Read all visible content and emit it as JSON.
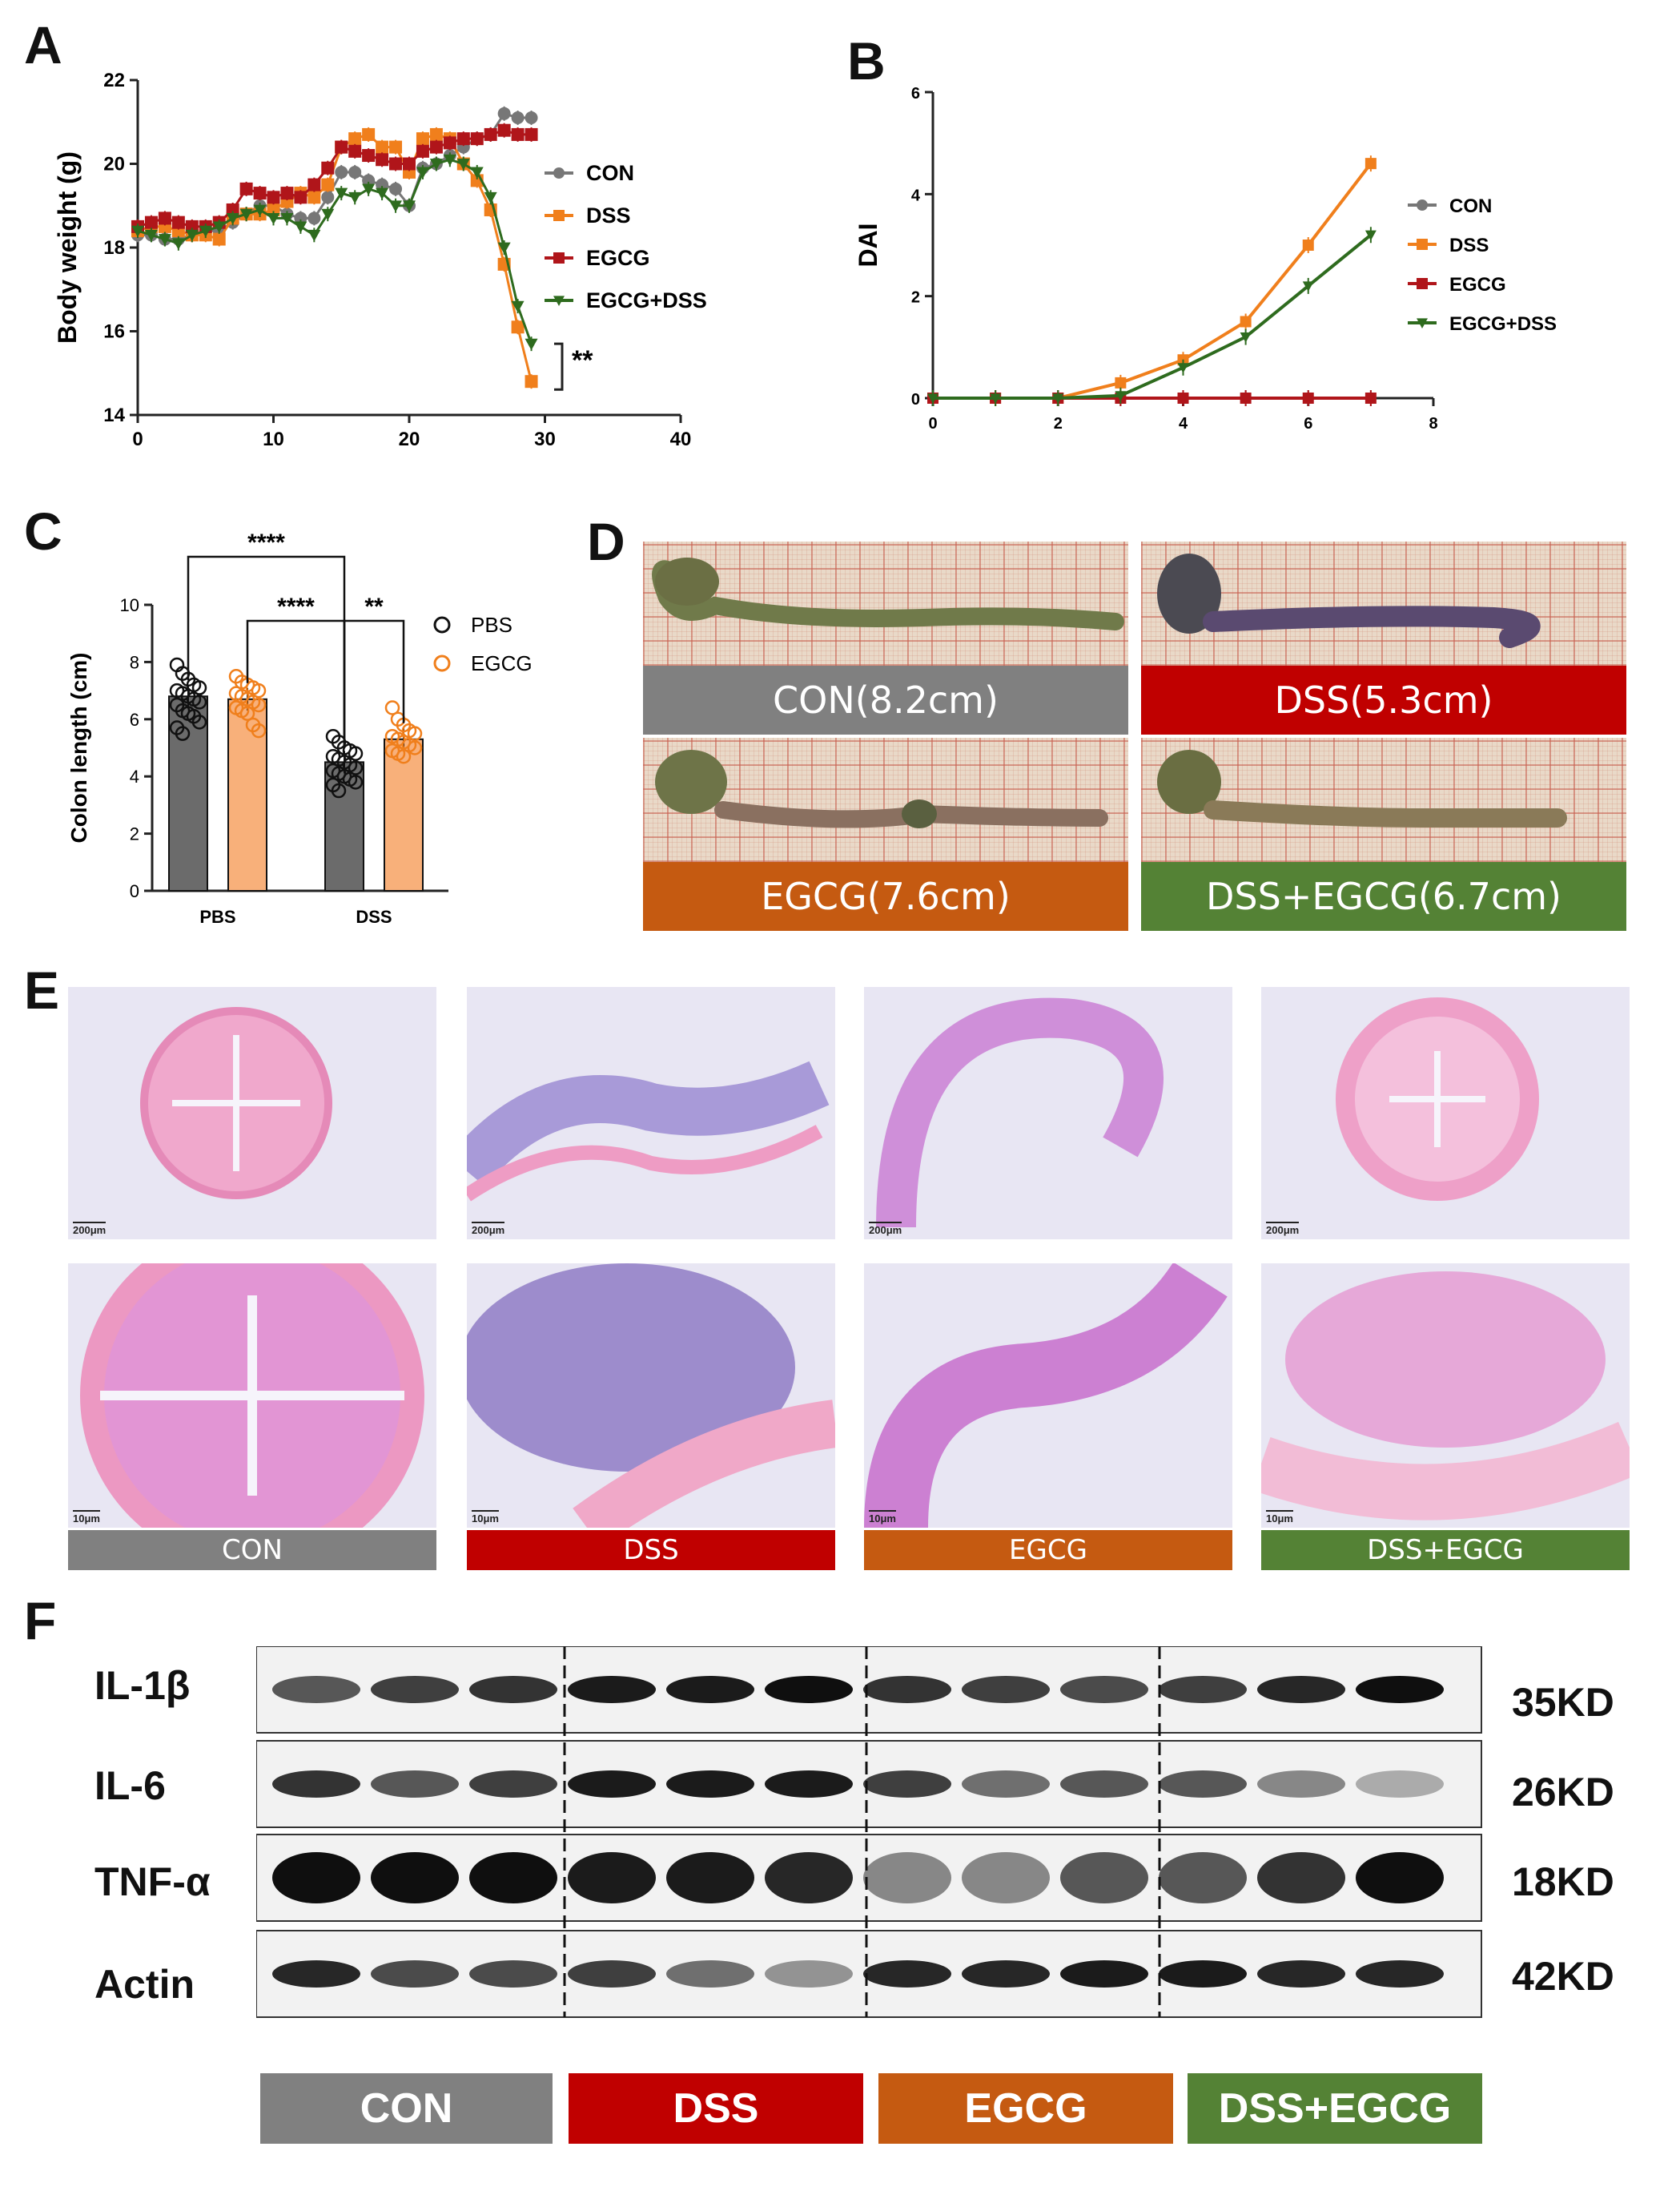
{
  "panel_letters": [
    "A",
    "B",
    "C",
    "D",
    "E",
    "F"
  ],
  "colors": {
    "con": "#777777",
    "dss": "#f07f1c",
    "egcg": "#b0151a",
    "egcg_dss": "#2e6b1e",
    "tag_con": "#808080",
    "tag_dss": "#c00000",
    "tag_egcg": "#c55a11",
    "tag_dss_egcg": "#548235",
    "pbs_bar": "#6b6b6b",
    "egcg_bar": "#f8b07a",
    "egcg_point": "#f07f1c"
  },
  "chart_data": [
    {
      "type": "line",
      "title": "",
      "xlabel": "",
      "ylabel": "Body weight (g)",
      "xlim": [
        0,
        40
      ],
      "ylim": [
        14,
        22
      ],
      "xticks": [
        "0",
        "10",
        "20",
        "30",
        "40"
      ],
      "yticks": [
        "14",
        "16",
        "18",
        "20",
        "22"
      ],
      "legend_position": "right",
      "significance": "**",
      "series": [
        {
          "name": "CON",
          "marker": "circle",
          "x": [
            0,
            1,
            2,
            3,
            4,
            5,
            6,
            7,
            8,
            9,
            10,
            11,
            12,
            13,
            14,
            15,
            16,
            17,
            18,
            19,
            20,
            21,
            22,
            23,
            24,
            25,
            26,
            27,
            28,
            29
          ],
          "y": [
            18.3,
            18.3,
            18.2,
            18.2,
            18.3,
            18.4,
            18.4,
            18.6,
            18.8,
            19.0,
            19.0,
            18.8,
            18.7,
            18.7,
            19.2,
            19.8,
            19.8,
            19.6,
            19.5,
            19.4,
            19.0,
            19.9,
            20.0,
            20.2,
            20.4,
            20.6,
            20.7,
            21.2,
            21.1,
            21.1
          ]
        },
        {
          "name": "DSS",
          "marker": "square",
          "x": [
            0,
            1,
            2,
            3,
            4,
            5,
            6,
            7,
            8,
            9,
            10,
            11,
            12,
            13,
            14,
            15,
            16,
            17,
            18,
            19,
            20,
            21,
            22,
            23,
            24,
            25,
            26,
            27,
            28,
            29
          ],
          "y": [
            18.4,
            18.5,
            18.5,
            18.4,
            18.3,
            18.3,
            18.2,
            18.7,
            18.8,
            18.8,
            18.9,
            19.1,
            19.3,
            19.2,
            19.5,
            20.4,
            20.6,
            20.7,
            20.4,
            20.4,
            19.8,
            20.6,
            20.7,
            20.6,
            20.0,
            19.6,
            18.9,
            17.6,
            16.1,
            14.8
          ]
        },
        {
          "name": "EGCG",
          "marker": "square",
          "x": [
            0,
            1,
            2,
            3,
            4,
            5,
            6,
            7,
            8,
            9,
            10,
            11,
            12,
            13,
            14,
            15,
            16,
            17,
            18,
            19,
            20,
            21,
            22,
            23,
            24,
            25,
            26,
            27,
            28,
            29
          ],
          "y": [
            18.5,
            18.6,
            18.7,
            18.6,
            18.5,
            18.5,
            18.6,
            18.9,
            19.4,
            19.3,
            19.2,
            19.3,
            19.2,
            19.5,
            19.9,
            20.4,
            20.3,
            20.2,
            20.1,
            20.0,
            20.0,
            20.3,
            20.4,
            20.5,
            20.6,
            20.6,
            20.7,
            20.8,
            20.7,
            20.7
          ]
        },
        {
          "name": "EGCG+DSS",
          "marker": "triangle-down",
          "x": [
            0,
            1,
            2,
            3,
            4,
            5,
            6,
            7,
            8,
            9,
            10,
            11,
            12,
            13,
            14,
            15,
            16,
            17,
            18,
            19,
            20,
            21,
            22,
            23,
            24,
            25,
            26,
            27,
            28,
            29
          ],
          "y": [
            18.4,
            18.3,
            18.2,
            18.1,
            18.3,
            18.4,
            18.5,
            18.7,
            18.8,
            18.9,
            18.7,
            18.7,
            18.5,
            18.3,
            18.8,
            19.3,
            19.2,
            19.4,
            19.3,
            19.0,
            19.0,
            19.8,
            20.0,
            20.1,
            20.0,
            19.8,
            19.2,
            18.0,
            16.6,
            15.7
          ]
        }
      ]
    },
    {
      "type": "line",
      "title": "",
      "xlabel": "",
      "ylabel": "DAI",
      "xlim": [
        0,
        8
      ],
      "ylim": [
        0,
        6
      ],
      "xticks": [
        "0",
        "2",
        "4",
        "6",
        "8"
      ],
      "yticks": [
        "0",
        "2",
        "4",
        "6"
      ],
      "legend_position": "right",
      "series": [
        {
          "name": "CON",
          "marker": "circle",
          "x": [
            0,
            1,
            2,
            3,
            4,
            5,
            6,
            7
          ],
          "y": [
            0,
            0,
            0,
            0,
            0,
            0,
            0,
            0
          ]
        },
        {
          "name": "DSS",
          "marker": "square",
          "x": [
            0,
            1,
            2,
            3,
            4,
            5,
            6,
            7
          ],
          "y": [
            0,
            0,
            0,
            0.3,
            0.75,
            1.5,
            3.0,
            4.6
          ]
        },
        {
          "name": "EGCG",
          "marker": "square",
          "x": [
            0,
            1,
            2,
            3,
            4,
            5,
            6,
            7
          ],
          "y": [
            0,
            0,
            0,
            0,
            0,
            0,
            0,
            0
          ]
        },
        {
          "name": "EGCG+DSS",
          "marker": "triangle-down",
          "x": [
            0,
            1,
            2,
            3,
            4,
            5,
            6,
            7
          ],
          "y": [
            0,
            0,
            0,
            0.05,
            0.6,
            1.2,
            2.2,
            3.2
          ]
        }
      ]
    },
    {
      "type": "bar",
      "title": "",
      "xlabel": "",
      "ylabel": "Colon length (cm)",
      "categories": [
        "PBS",
        "DSS"
      ],
      "ylim": [
        0,
        10
      ],
      "yticks": [
        "0",
        "2",
        "4",
        "6",
        "8",
        "10"
      ],
      "legend_position": "top-right",
      "series": [
        {
          "name": "PBS",
          "values": [
            6.8,
            4.5
          ],
          "points": [
            [
              7.9,
              7.6,
              7.4,
              7.2,
              7.1,
              7.0,
              6.9,
              6.8,
              6.7,
              6.6,
              6.5,
              6.3,
              6.2,
              6.1,
              5.9,
              5.7,
              5.5
            ],
            [
              5.4,
              5.2,
              5.0,
              4.9,
              4.8,
              4.7,
              4.6,
              4.5,
              4.4,
              4.3,
              4.2,
              4.1,
              4.0,
              3.9,
              3.8,
              3.7,
              3.5
            ]
          ]
        },
        {
          "name": "EGCG",
          "values": [
            6.7,
            5.3
          ],
          "points": [
            [
              7.5,
              7.3,
              7.2,
              7.1,
              7.0,
              6.9,
              6.8,
              6.7,
              6.6,
              6.5,
              6.4,
              6.3,
              6.2,
              5.8,
              5.6
            ],
            [
              6.4,
              6.0,
              5.8,
              5.6,
              5.5,
              5.4,
              5.3,
              5.2,
              5.1,
              5.0,
              4.9,
              4.8,
              4.7
            ]
          ]
        }
      ],
      "significance": [
        {
          "label": "****",
          "from": "PBS-PBS",
          "to": "DSS-PBS"
        },
        {
          "label": "****",
          "from": "PBS-EGCG",
          "to": "DSS-PBS"
        },
        {
          "label": "**",
          "from": "DSS-PBS",
          "to": "DSS-EGCG"
        }
      ]
    }
  ],
  "panel_d": {
    "captions": [
      "CON(8.2cm)",
      "DSS(5.3cm)",
      "EGCG(7.6cm)",
      "DSS+EGCG(6.7cm)"
    ]
  },
  "panel_e": {
    "scale_top": "200μm",
    "scale_bottom": "10μm",
    "captions": [
      "CON",
      "DSS",
      "EGCG",
      "DSS+EGCG"
    ]
  },
  "panel_f": {
    "rows": [
      {
        "protein": "IL-1β",
        "size": "35KD"
      },
      {
        "protein": "IL-6",
        "size": "26KD"
      },
      {
        "protein": "TNF-α",
        "size": "18KD"
      },
      {
        "protein": "Actin",
        "size": "42KD"
      }
    ],
    "groups": [
      "CON",
      "DSS",
      "EGCG",
      "DSS+EGCG"
    ]
  }
}
